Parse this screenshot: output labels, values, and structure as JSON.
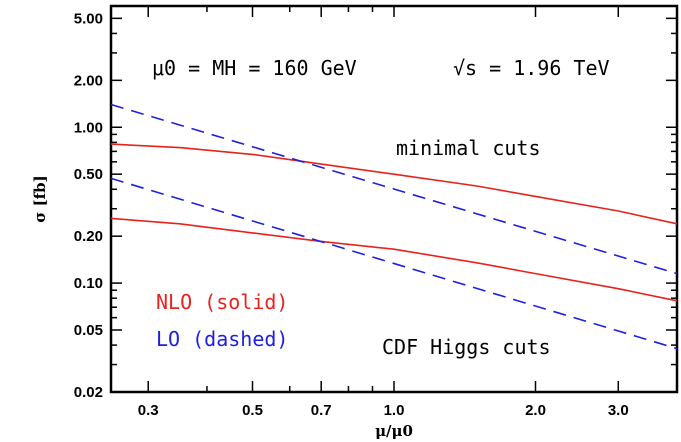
{
  "chart_data": {
    "type": "line",
    "x_scale": "log",
    "y_scale": "log",
    "xlim": [
      0.25,
      4.0
    ],
    "ylim": [
      0.02,
      6.0
    ],
    "xlabel": "μ/μ0",
    "ylabel": "σ [fb]",
    "x_ticks": [
      0.3,
      0.5,
      0.7,
      1.0,
      2.0,
      3.0
    ],
    "x_tick_labels": [
      "0.3",
      "0.5",
      "0.7",
      "1.0",
      "2.0",
      "3.0"
    ],
    "y_ticks": [
      0.02,
      0.05,
      0.1,
      0.2,
      0.5,
      1.0,
      2.0,
      5.0
    ],
    "y_tick_labels": [
      "0.02",
      "0.05",
      "0.10",
      "0.20",
      "0.50",
      "1.00",
      "2.00",
      "5.00"
    ],
    "grid": false,
    "annotations": {
      "mu0": "μ0 = MH = 160 GeV",
      "sqrt_s": "√s = 1.96 TeV",
      "minimal": "minimal cuts",
      "cdf": "CDF Higgs cuts"
    },
    "legend": {
      "placement": "bottom-left",
      "entries": [
        "NLO (solid)",
        "LO (dashed)"
      ]
    },
    "colors": {
      "nlo": "#e8231d",
      "lo": "#1f1fe0"
    },
    "series": [
      {
        "label": "NLO minimal cuts",
        "style": "solid",
        "color": "#e8231d",
        "x": [
          0.25,
          0.35,
          0.5,
          0.7,
          1.0,
          1.5,
          2.0,
          3.0,
          4.0
        ],
        "y": [
          0.78,
          0.74,
          0.67,
          0.58,
          0.5,
          0.42,
          0.36,
          0.29,
          0.24
        ]
      },
      {
        "label": "LO minimal cuts",
        "style": "dashed",
        "color": "#1f1fe0",
        "x": [
          0.25,
          4.0
        ],
        "y": [
          1.4,
          0.115
        ]
      },
      {
        "label": "NLO CDF Higgs cuts",
        "style": "solid",
        "color": "#e8231d",
        "x": [
          0.25,
          0.35,
          0.5,
          0.7,
          1.0,
          1.5,
          2.0,
          3.0,
          4.0
        ],
        "y": [
          0.26,
          0.24,
          0.21,
          0.185,
          0.165,
          0.135,
          0.115,
          0.092,
          0.077
        ]
      },
      {
        "label": "LO CDF Higgs cuts",
        "style": "dashed",
        "color": "#1f1fe0",
        "x": [
          0.25,
          4.0
        ],
        "y": [
          0.47,
          0.038
        ]
      }
    ]
  }
}
